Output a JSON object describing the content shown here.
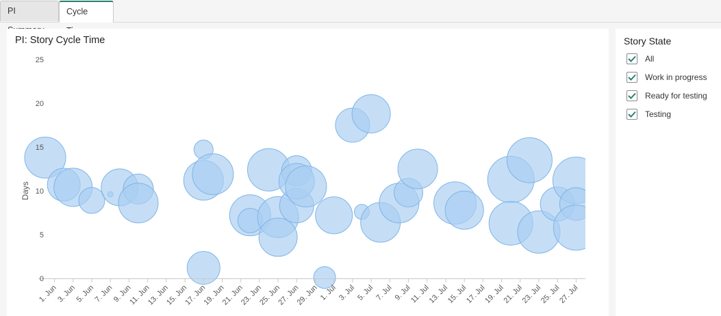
{
  "tabs": [
    {
      "label": "PI Summary",
      "active": false
    },
    {
      "label": "Cycle Time",
      "active": true
    }
  ],
  "legend_panel": {
    "title": "Story State",
    "options": [
      {
        "label": "All",
        "checked": true
      },
      {
        "label": "Work in progress",
        "checked": true
      },
      {
        "label": "Ready for testing",
        "checked": true
      },
      {
        "label": "Testing",
        "checked": true
      }
    ]
  },
  "colors": {
    "bubble_fill": "#a9cff2",
    "bubble_stroke": "#7fb4e6",
    "check": "#2a7f73",
    "active_tab_accent": "#2a7f73"
  },
  "chart_data": {
    "type": "scatter",
    "title": "PI: Story Cycle Time",
    "xlabel": "",
    "ylabel": "Days",
    "ylim": [
      0,
      25
    ],
    "yticks": [
      0,
      5,
      10,
      15,
      20,
      25
    ],
    "xlim": [
      "2022-05-31",
      "2022-07-28"
    ],
    "xticks": [
      "1. Jun",
      "3. Jun",
      "5. Jun",
      "7. Jun",
      "9. Jun",
      "11. Jun",
      "13. Jun",
      "15. Jun",
      "17. Jun",
      "19. Jun",
      "21. Jun",
      "23. Jun",
      "25. Jun",
      "27. Jun",
      "29. Jun",
      "1. Jul",
      "3. Jul",
      "5. Jul",
      "7. Jul",
      "9. Jul",
      "11. Jul",
      "13. Jul",
      "15. Jul",
      "17. Jul",
      "19. Jul",
      "21. Jul",
      "23. Jul",
      "25. Jul",
      "27. Jul"
    ],
    "grid": false,
    "series": [
      {
        "points": [
          {
            "x": "2022-05-31",
            "y": 13.8,
            "size": 30
          },
          {
            "x": "2022-06-02",
            "y": 10.7,
            "size": 24
          },
          {
            "x": "2022-06-03",
            "y": 10.4,
            "size": 28
          },
          {
            "x": "2022-06-05",
            "y": 8.9,
            "size": 19
          },
          {
            "x": "2022-06-07",
            "y": 9.6,
            "size": 4
          },
          {
            "x": "2022-06-08",
            "y": 10.4,
            "size": 27
          },
          {
            "x": "2022-06-10",
            "y": 10.2,
            "size": 22
          },
          {
            "x": "2022-06-10",
            "y": 8.6,
            "size": 29
          },
          {
            "x": "2022-06-17",
            "y": 11.2,
            "size": 29
          },
          {
            "x": "2022-06-17",
            "y": 14.7,
            "size": 14
          },
          {
            "x": "2022-06-18",
            "y": 11.9,
            "size": 30
          },
          {
            "x": "2022-06-17",
            "y": 1.2,
            "size": 24
          },
          {
            "x": "2022-06-22",
            "y": 7.2,
            "size": 30
          },
          {
            "x": "2022-06-22",
            "y": 6.6,
            "size": 18
          },
          {
            "x": "2022-06-24",
            "y": 12.4,
            "size": 31
          },
          {
            "x": "2022-06-25",
            "y": 7.0,
            "size": 30
          },
          {
            "x": "2022-06-25",
            "y": 4.7,
            "size": 28
          },
          {
            "x": "2022-06-27",
            "y": 12.3,
            "size": 22
          },
          {
            "x": "2022-06-27",
            "y": 8.3,
            "size": 25
          },
          {
            "x": "2022-06-27",
            "y": 11.1,
            "size": 26
          },
          {
            "x": "2022-06-28",
            "y": 10.5,
            "size": 30
          },
          {
            "x": "2022-06-30",
            "y": 0.1,
            "size": 16
          },
          {
            "x": "2022-07-01",
            "y": 7.2,
            "size": 27
          },
          {
            "x": "2022-07-03",
            "y": 17.5,
            "size": 25
          },
          {
            "x": "2022-07-04",
            "y": 7.6,
            "size": 11
          },
          {
            "x": "2022-07-05",
            "y": 18.8,
            "size": 28
          },
          {
            "x": "2022-07-06",
            "y": 6.4,
            "size": 29
          },
          {
            "x": "2022-07-08",
            "y": 8.6,
            "size": 29
          },
          {
            "x": "2022-07-09",
            "y": 9.8,
            "size": 21
          },
          {
            "x": "2022-07-10",
            "y": 12.5,
            "size": 29
          },
          {
            "x": "2022-07-14",
            "y": 8.6,
            "size": 31
          },
          {
            "x": "2022-07-15",
            "y": 7.8,
            "size": 28
          },
          {
            "x": "2022-07-20",
            "y": 11.3,
            "size": 34
          },
          {
            "x": "2022-07-20",
            "y": 6.3,
            "size": 32
          },
          {
            "x": "2022-07-22",
            "y": 13.5,
            "size": 33
          },
          {
            "x": "2022-07-23",
            "y": 5.3,
            "size": 31
          },
          {
            "x": "2022-07-25",
            "y": 8.5,
            "size": 25
          },
          {
            "x": "2022-07-27",
            "y": 11.2,
            "size": 34
          },
          {
            "x": "2022-07-27",
            "y": 8.5,
            "size": 24
          },
          {
            "x": "2022-07-27",
            "y": 5.8,
            "size": 33
          }
        ]
      }
    ]
  }
}
